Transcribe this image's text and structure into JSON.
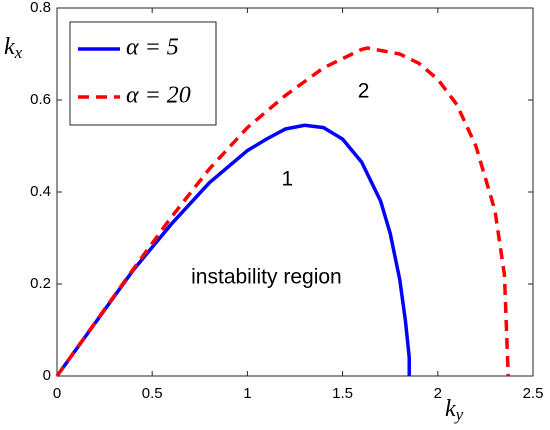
{
  "chart_data": {
    "type": "line",
    "xlabel": "ky",
    "ylabel": "kx",
    "xlim": [
      0,
      2.5
    ],
    "xticks": [
      0,
      0.5,
      1,
      1.5,
      2,
      2.5
    ],
    "ylim": [
      0,
      0.8
    ],
    "yticks": [
      0,
      0.2,
      0.4,
      0.6,
      0.8
    ],
    "legend": "top-left",
    "annotations": [
      "1",
      "2",
      "instability region"
    ],
    "series": [
      {
        "name": "α = 5",
        "color": "#0000ff",
        "style": "solid",
        "x": [
          0,
          0.2,
          0.4,
          0.6,
          0.8,
          1.0,
          1.1,
          1.2,
          1.3,
          1.4,
          1.5,
          1.6,
          1.7,
          1.75,
          1.8,
          1.83,
          1.85,
          1.85
        ],
        "values": [
          0,
          0.115,
          0.23,
          0.33,
          0.42,
          0.49,
          0.515,
          0.537,
          0.545,
          0.54,
          0.515,
          0.465,
          0.38,
          0.31,
          0.21,
          0.12,
          0.04,
          0
        ]
      },
      {
        "name": "α = 20",
        "color": "#ff0000",
        "style": "dashed",
        "x": [
          0,
          0.2,
          0.4,
          0.6,
          0.8,
          1.0,
          1.2,
          1.4,
          1.6,
          1.63,
          1.8,
          1.9,
          2.0,
          2.1,
          2.2,
          2.3,
          2.35,
          2.37
        ],
        "values": [
          0,
          0.116,
          0.232,
          0.345,
          0.45,
          0.54,
          0.61,
          0.67,
          0.71,
          0.713,
          0.7,
          0.68,
          0.645,
          0.59,
          0.5,
          0.36,
          0.22,
          0
        ]
      }
    ]
  }
}
